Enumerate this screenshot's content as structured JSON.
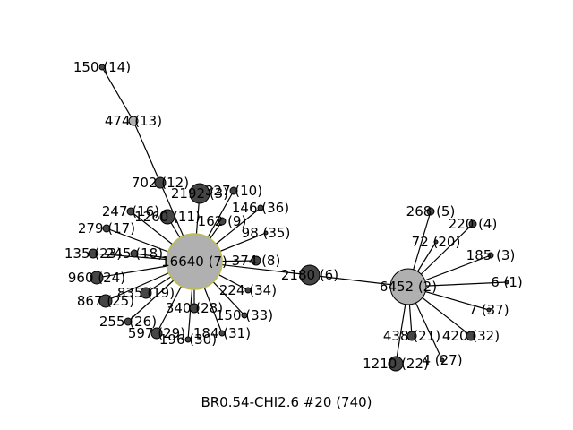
{
  "title": "BR0.54-CHI2.6 #20 (740)",
  "colors": {
    "node_dark": "#454545",
    "node_light": "#b0b0b0",
    "hub_ring": "#bdbd52",
    "edge": "#000000"
  },
  "nodes": [
    {
      "id": "16640",
      "label": "16640 (7)",
      "fill": "light",
      "ring": true
    },
    {
      "id": "6452",
      "label": "6452 (2)",
      "fill": "light"
    },
    {
      "id": "2180",
      "label": "2180 (6)",
      "fill": "dark"
    },
    {
      "id": "474",
      "label": "474 (13)",
      "fill": "light"
    },
    {
      "id": "150a",
      "label": "150 (14)",
      "fill": "dark"
    },
    {
      "id": "702",
      "label": "702 (12)",
      "fill": "dark"
    },
    {
      "id": "2192",
      "label": "2192 (3)",
      "fill": "dark"
    },
    {
      "id": "327",
      "label": "327 (10)",
      "fill": "dark"
    },
    {
      "id": "247",
      "label": "247 (16)",
      "fill": "dark"
    },
    {
      "id": "1260",
      "label": "1260 (11)",
      "fill": "dark"
    },
    {
      "id": "162",
      "label": "162 (9)",
      "fill": "dark"
    },
    {
      "id": "146",
      "label": "146 (36)",
      "fill": "dark"
    },
    {
      "id": "279",
      "label": "279 (17)",
      "fill": "dark"
    },
    {
      "id": "98",
      "label": "98 (35)",
      "fill": "dark"
    },
    {
      "id": "135",
      "label": "135 (23)",
      "fill": "dark"
    },
    {
      "id": "245",
      "label": "245 (18)",
      "fill": "dark"
    },
    {
      "id": "374",
      "label": "374 (8)",
      "fill": "dark"
    },
    {
      "id": "960",
      "label": "960 (24)",
      "fill": "dark"
    },
    {
      "id": "224",
      "label": "224 (34)",
      "fill": "dark"
    },
    {
      "id": "835",
      "label": "835 (19)",
      "fill": "dark"
    },
    {
      "id": "867",
      "label": "867 (25)",
      "fill": "dark"
    },
    {
      "id": "340",
      "label": "340 (28)",
      "fill": "dark"
    },
    {
      "id": "150b",
      "label": "150 (33)",
      "fill": "dark"
    },
    {
      "id": "255",
      "label": "255 (26)",
      "fill": "dark"
    },
    {
      "id": "597",
      "label": "597 (29)",
      "fill": "dark"
    },
    {
      "id": "184",
      "label": "184 (31)",
      "fill": "dark"
    },
    {
      "id": "196",
      "label": "196 (30)",
      "fill": "dark"
    },
    {
      "id": "268",
      "label": "268 (5)",
      "fill": "dark"
    },
    {
      "id": "220",
      "label": "220 (4)",
      "fill": "dark"
    },
    {
      "id": "72",
      "label": "72 (20)",
      "fill": "dark"
    },
    {
      "id": "185",
      "label": "185 (3)",
      "fill": "dark"
    },
    {
      "id": "6",
      "label": "6 (1)",
      "fill": "dark"
    },
    {
      "id": "7",
      "label": "7 (37)",
      "fill": "dark"
    },
    {
      "id": "438",
      "label": "438 (21)",
      "fill": "dark"
    },
    {
      "id": "420",
      "label": "420 (32)",
      "fill": "dark"
    },
    {
      "id": "1210",
      "label": "1210 (22)",
      "fill": "dark"
    },
    {
      "id": "4",
      "label": "4 (27)",
      "fill": "dark"
    }
  ],
  "edges": [
    [
      "150a",
      "474"
    ],
    [
      "474",
      "702"
    ],
    [
      "702",
      "16640"
    ],
    [
      "2192",
      "16640"
    ],
    [
      "327",
      "16640"
    ],
    [
      "247",
      "16640"
    ],
    [
      "1260",
      "16640"
    ],
    [
      "162",
      "16640"
    ],
    [
      "146",
      "16640"
    ],
    [
      "279",
      "16640"
    ],
    [
      "98",
      "16640"
    ],
    [
      "135",
      "16640"
    ],
    [
      "245",
      "16640"
    ],
    [
      "374",
      "16640"
    ],
    [
      "960",
      "16640"
    ],
    [
      "224",
      "16640"
    ],
    [
      "835",
      "16640"
    ],
    [
      "867",
      "16640"
    ],
    [
      "340",
      "16640"
    ],
    [
      "150b",
      "16640"
    ],
    [
      "255",
      "16640"
    ],
    [
      "597",
      "16640"
    ],
    [
      "184",
      "16640"
    ],
    [
      "196",
      "16640"
    ],
    [
      "16640",
      "2180"
    ],
    [
      "2180",
      "6452"
    ],
    [
      "6452",
      "268"
    ],
    [
      "6452",
      "220"
    ],
    [
      "6452",
      "72"
    ],
    [
      "6452",
      "185"
    ],
    [
      "6452",
      "6"
    ],
    [
      "6452",
      "7"
    ],
    [
      "6452",
      "438"
    ],
    [
      "6452",
      "420"
    ],
    [
      "6452",
      "1210"
    ],
    [
      "6452",
      "4"
    ]
  ]
}
